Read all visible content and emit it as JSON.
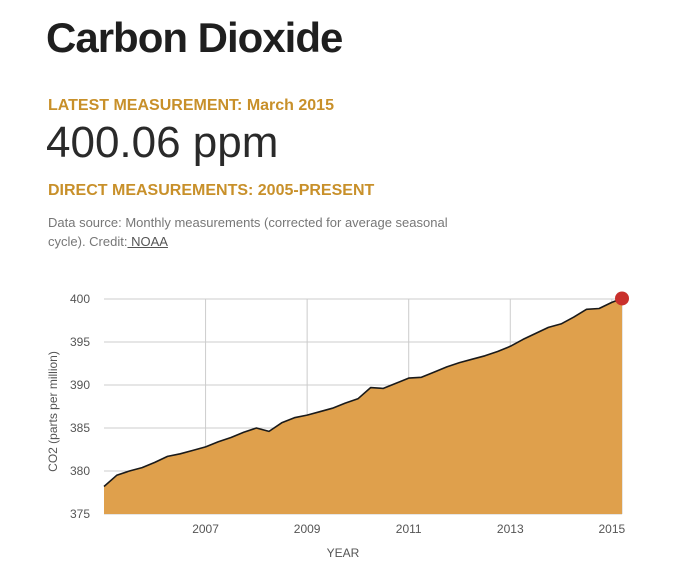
{
  "title": "Carbon Dioxide",
  "latest": {
    "label": "LATEST MEASUREMENT: March 2015",
    "value": "400.06 ppm"
  },
  "direct": {
    "label": "DIRECT MEASUREMENTS: 2005-PRESENT"
  },
  "source": {
    "text": "Data source: Monthly measurements (corrected for average seasonal cycle). Credit:",
    "link": " NOAA"
  },
  "colors": {
    "fill": "#dfa04c",
    "line": "#1a1a1a",
    "marker": "#c9302c",
    "accent": "#c8902a",
    "grid": "#cccccc"
  },
  "chart_data": {
    "type": "area",
    "xlabel": "YEAR",
    "ylabel": "CO2 (parts per million)",
    "xlim": [
      2005.0,
      2015.2
    ],
    "ylim": [
      375,
      400
    ],
    "x_ticks": [
      2007,
      2009,
      2011,
      2013,
      2015
    ],
    "y_ticks": [
      375,
      380,
      385,
      390,
      395,
      400
    ],
    "grid": true,
    "x": [
      2005.0,
      2005.25,
      2005.5,
      2005.75,
      2006.0,
      2006.25,
      2006.5,
      2006.75,
      2007.0,
      2007.25,
      2007.5,
      2007.75,
      2008.0,
      2008.25,
      2008.5,
      2008.75,
      2009.0,
      2009.25,
      2009.5,
      2009.75,
      2010.0,
      2010.25,
      2010.5,
      2010.75,
      2011.0,
      2011.25,
      2011.5,
      2011.75,
      2012.0,
      2012.25,
      2012.5,
      2012.75,
      2013.0,
      2013.25,
      2013.5,
      2013.75,
      2014.0,
      2014.25,
      2014.5,
      2014.75,
      2015.0,
      2015.2
    ],
    "values": [
      378.2,
      379.5,
      380.0,
      380.4,
      381.0,
      381.7,
      382.0,
      382.4,
      382.8,
      383.4,
      383.9,
      384.5,
      385.0,
      384.6,
      385.6,
      386.2,
      386.5,
      386.9,
      387.3,
      387.9,
      388.4,
      389.7,
      389.6,
      390.2,
      390.8,
      390.9,
      391.5,
      392.1,
      392.6,
      393.0,
      393.4,
      393.9,
      394.5,
      395.3,
      396.0,
      396.7,
      397.1,
      397.9,
      398.8,
      398.9,
      399.6,
      400.06
    ],
    "marker": {
      "x": 2015.2,
      "y": 400.06
    }
  }
}
